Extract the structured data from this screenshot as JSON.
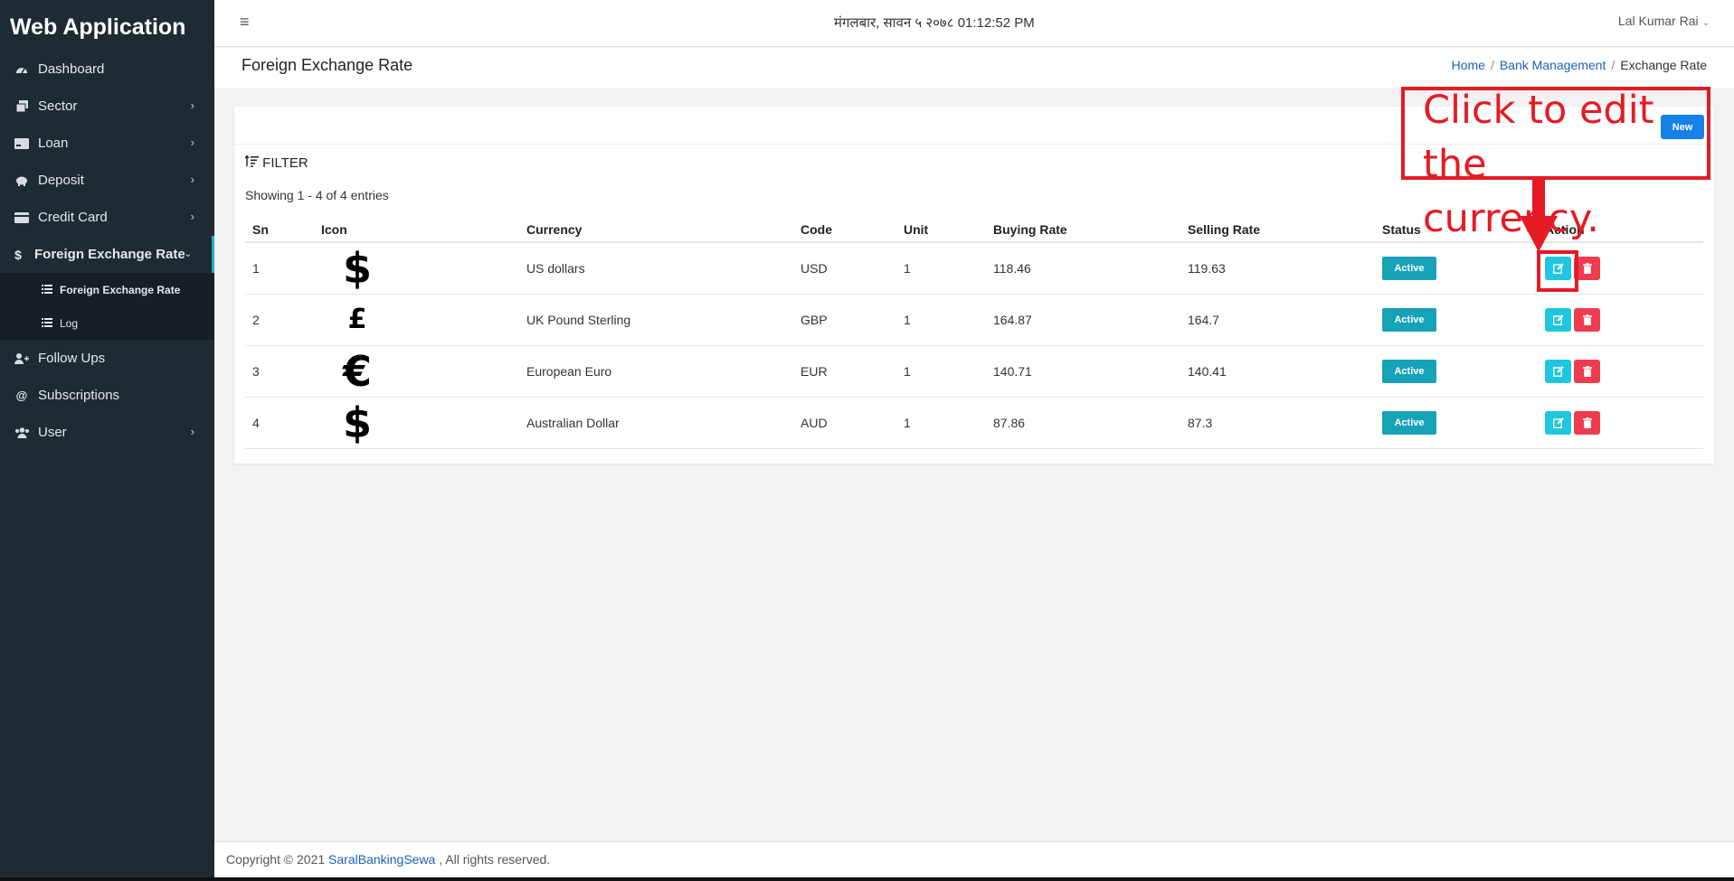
{
  "app": {
    "title": "Web Application"
  },
  "header": {
    "datetime": "मंगलबार, सावन ५ २०७८ 01:12:52 PM",
    "user_name": "Lal Kumar Rai"
  },
  "sidebar": {
    "items": [
      {
        "label": "Dashboard",
        "icon": "dashboard-icon"
      },
      {
        "label": "Sector",
        "icon": "sector-icon"
      },
      {
        "label": "Loan",
        "icon": "loan-icon"
      },
      {
        "label": "Deposit",
        "icon": "piggy-bank-icon"
      },
      {
        "label": "Credit Card",
        "icon": "credit-card-icon"
      },
      {
        "label": "Foreign Exchange Rate",
        "icon": "dollar-icon"
      },
      {
        "label": "Follow Ups",
        "icon": "user-plus-icon"
      },
      {
        "label": "Subscriptions",
        "icon": "at-icon"
      },
      {
        "label": "User",
        "icon": "users-icon"
      }
    ],
    "sub_items": [
      {
        "label": "Foreign Exchange Rate",
        "icon": "list-icon"
      },
      {
        "label": "Log",
        "icon": "list-icon"
      }
    ]
  },
  "page": {
    "title": "Foreign Exchange Rate",
    "breadcrumb": {
      "home": "Home",
      "bank": "Bank Management",
      "current": "Exchange Rate"
    }
  },
  "card": {
    "new_label": "New",
    "filter_label": "FILTER",
    "entries_text": "Showing 1 - 4 of 4 entries"
  },
  "table": {
    "headers": [
      "Sn",
      "Icon",
      "Currency",
      "Code",
      "Unit",
      "Buying Rate",
      "Selling Rate",
      "Status",
      "Action"
    ],
    "rows": [
      {
        "sn": "1",
        "icon": "$",
        "currency": "US dollars",
        "code": "USD",
        "unit": "1",
        "buying": "118.46",
        "selling": "119.63",
        "status": "Active"
      },
      {
        "sn": "2",
        "icon": "£",
        "currency": "UK Pound Sterling",
        "code": "GBP",
        "unit": "1",
        "buying": "164.87",
        "selling": "164.7",
        "status": "Active"
      },
      {
        "sn": "3",
        "icon": "€",
        "currency": "European Euro",
        "code": "EUR",
        "unit": "1",
        "buying": "140.71",
        "selling": "140.41",
        "status": "Active"
      },
      {
        "sn": "4",
        "icon": "$",
        "currency": "Australian Dollar",
        "code": "AUD",
        "unit": "1",
        "buying": "87.86",
        "selling": "87.3",
        "status": "Active"
      }
    ]
  },
  "annotation": {
    "text": "Click to edit the\ncurrency."
  },
  "footer": {
    "prefix": "Copyright © 2021 ",
    "link": "SaralBankingSewa",
    "suffix": " , All rights reserved."
  },
  "colors": {
    "sidebar_bg": "#1e2b33",
    "accent": "#17a2b8",
    "edit": "#1fc6de",
    "delete": "#ef3b4e",
    "annotation": "#e51b24"
  }
}
